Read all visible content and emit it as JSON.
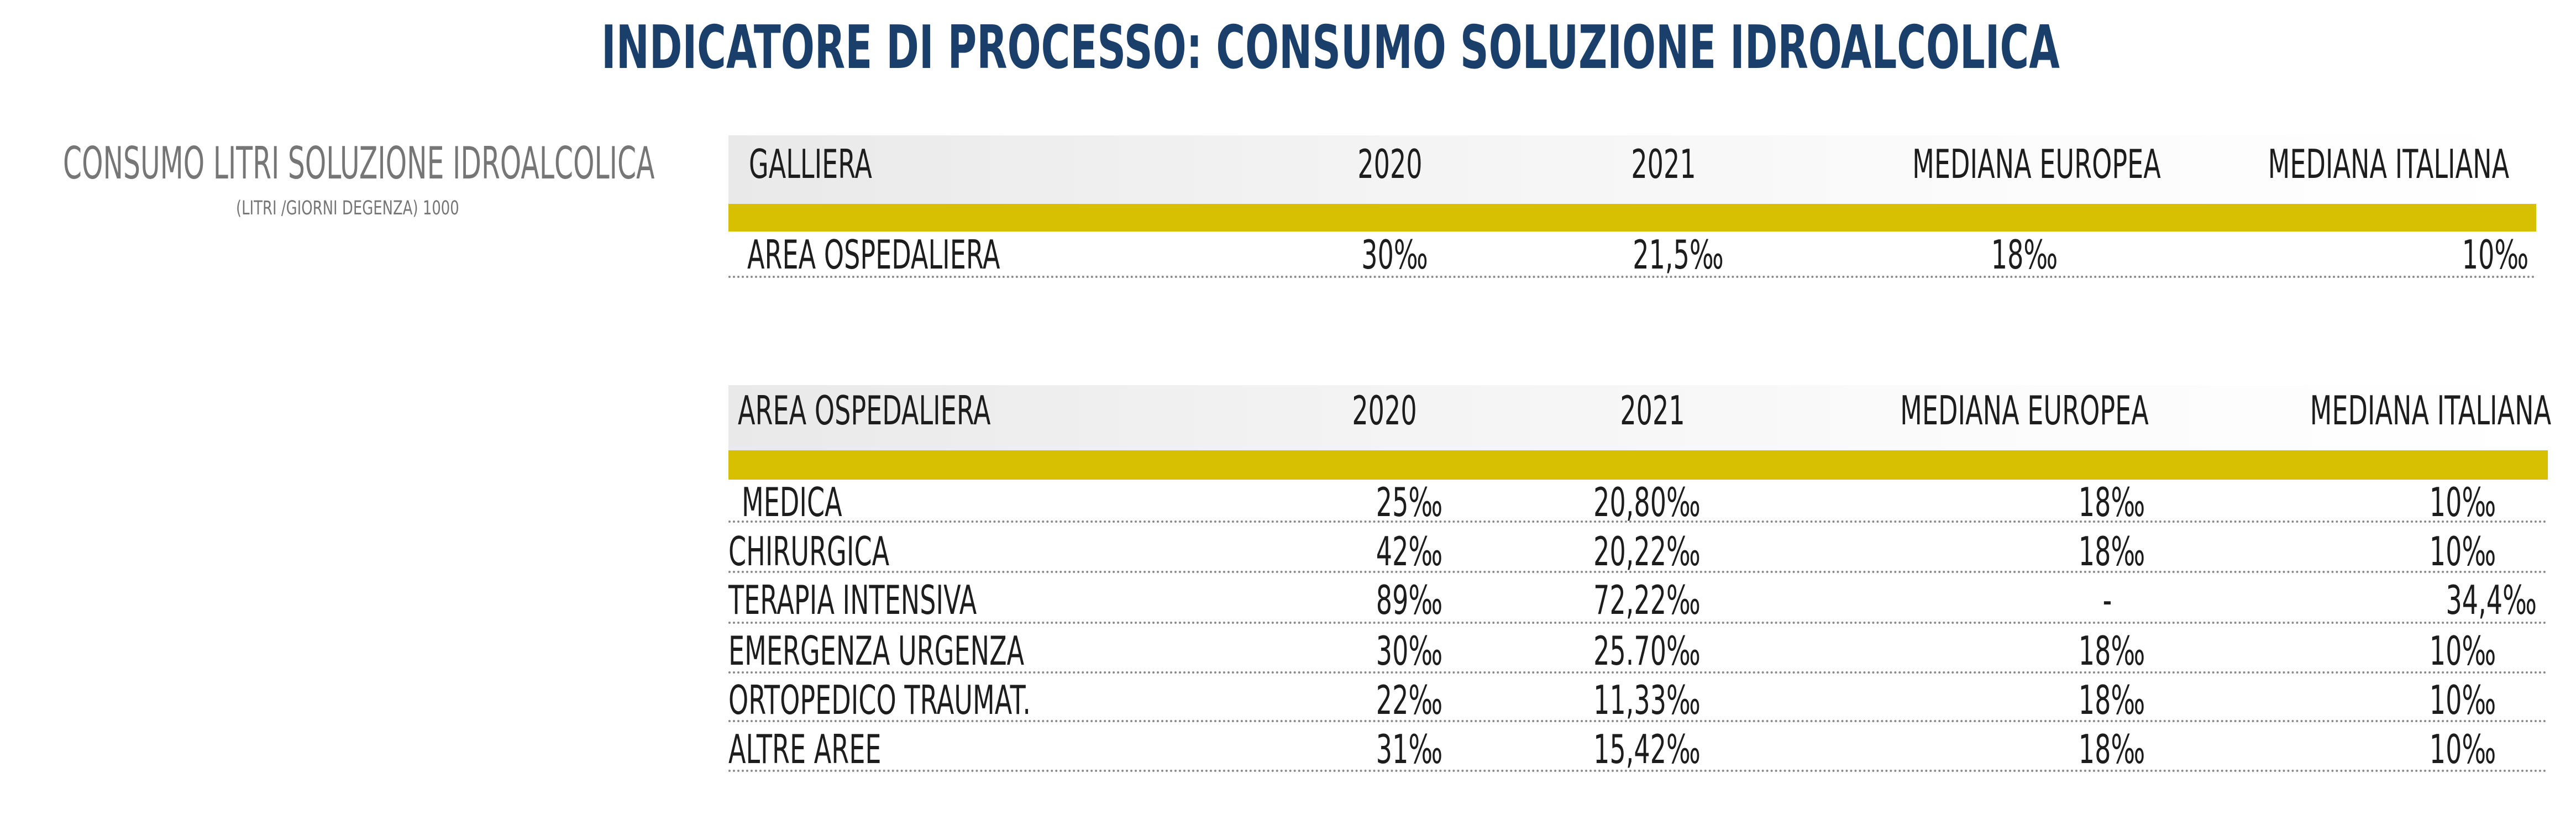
{
  "title": "INDICATORE DI PROCESSO: CONSUMO SOLUZIONE IDROALCOLICA",
  "side_panel": {
    "label": "CONSUMO LITRI SOLUZIONE IDROALCOLICA",
    "sublabel": "(LITRI /GIORNI DEGENZA) 1000"
  },
  "table_galliera": {
    "headers": [
      "GALLIERA",
      "2020",
      "2021",
      "MEDIANA EUROPEA",
      "MEDIANA ITALIANA"
    ],
    "rows": [
      [
        "AREA OSPEDALIERA",
        "30‰",
        "21,5‰",
        "18‰",
        "10‰"
      ]
    ]
  },
  "table_area": {
    "headers": [
      "AREA OSPEDALIERA",
      "2020",
      "2021",
      "MEDIANA EUROPEA",
      "MEDIANA ITALIANA"
    ],
    "rows": [
      [
        "MEDICA",
        "25‰",
        "20,80‰",
        "18‰",
        "10‰"
      ],
      [
        "CHIRURGICA",
        "42‰",
        "20,22‰",
        "18‰",
        "10‰"
      ],
      [
        "TERAPIA INTENSIVA",
        "89‰",
        "72,22‰",
        "-",
        "34,4‰"
      ],
      [
        "EMERGENZA URGENZA",
        "30‰",
        "25.70‰",
        "18‰",
        "10‰"
      ],
      [
        "ORTOPEDICO TRAUMAT.",
        "22‰",
        "11,33‰",
        "18‰",
        "10‰"
      ],
      [
        "ALTRE AREE",
        "31‰",
        "15,42‰",
        "18‰",
        "10‰"
      ]
    ]
  },
  "colors": {
    "title": "#1b3f6b",
    "header_band": "#d7bf02",
    "side_text": "#767676"
  }
}
